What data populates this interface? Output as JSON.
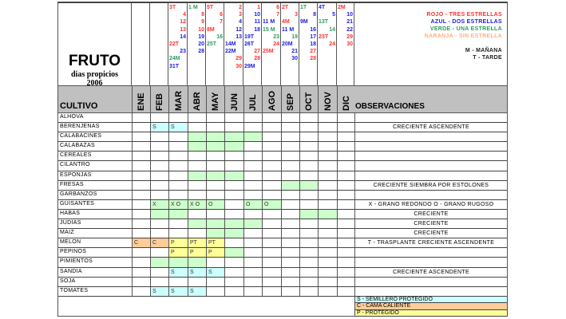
{
  "title": {
    "main": "FRUTO",
    "subtitle": "dias propicios",
    "year": "2006"
  },
  "colors": {
    "red": "#ff3030",
    "blue": "#2020e0",
    "green": "#2e9e5e",
    "orange": "#ffb080",
    "semillero": "#ccffff",
    "cama": "#ffcc99",
    "protegido": "#ffff99",
    "siembra": "#ccffcc",
    "header_gray": "#c0c0c0"
  },
  "calendar": [
    {
      "month": "ENE",
      "entries": []
    },
    {
      "month": "FEB",
      "entries": []
    },
    {
      "month": "MAR",
      "entries": [
        {
          "t": "3T",
          "c": "red",
          "a": "l"
        },
        {
          "t": "4",
          "c": "red",
          "a": "r"
        },
        {
          "t": "12",
          "c": "red",
          "a": "r"
        },
        {
          "t": "13",
          "c": "red",
          "a": "r"
        },
        {
          "t": "14",
          "c": "blue",
          "a": "r"
        },
        {
          "t": "22T",
          "c": "red",
          "a": "l"
        },
        {
          "t": "23",
          "c": "blue",
          "a": "r"
        },
        {
          "t": "24M",
          "c": "green",
          "a": "l"
        },
        {
          "t": "31T",
          "c": "blue",
          "a": "l"
        }
      ]
    },
    {
      "month": "ABR",
      "entries": [
        {
          "t": "1 M",
          "c": "green",
          "a": "l"
        },
        {
          "t": "8",
          "c": "red",
          "a": "r"
        },
        {
          "t": "9",
          "c": "red",
          "a": "r"
        },
        {
          "t": "10",
          "c": "red",
          "a": "r"
        },
        {
          "t": "19",
          "c": "blue",
          "a": "r"
        },
        {
          "t": "20",
          "c": "blue",
          "a": "r"
        },
        {
          "t": "28",
          "c": "blue",
          "a": "r"
        }
      ]
    },
    {
      "month": "MAY",
      "entries": [
        {
          "t": "5T",
          "c": "red",
          "a": "l"
        },
        {
          "t": "6",
          "c": "red",
          "a": "r"
        },
        {
          "t": "7",
          "c": "red",
          "a": "r"
        },
        {
          "t": "8M",
          "c": "red",
          "a": "l"
        },
        {
          "t": "16",
          "c": "green",
          "a": "r"
        },
        {
          "t": "25T",
          "c": "green",
          "a": "l"
        }
      ]
    },
    {
      "month": "JUN",
      "entries": [
        {
          "t": "2",
          "c": "red",
          "a": "r"
        },
        {
          "t": "3",
          "c": "red",
          "a": "r"
        },
        {
          "t": "4",
          "c": "blue",
          "a": "r"
        },
        {
          "t": "12",
          "c": "blue",
          "a": "r"
        },
        {
          "t": "13",
          "c": "blue",
          "a": "r"
        },
        {
          "t": "14M",
          "c": "blue",
          "a": "l"
        },
        {
          "t": "22M",
          "c": "blue",
          "a": "l"
        },
        {
          "t": "29",
          "c": "red",
          "a": "r"
        },
        {
          "t": "30",
          "c": "red",
          "a": "r"
        }
      ]
    },
    {
      "month": "JUL",
      "entries": [
        {
          "t": "1",
          "c": "red",
          "a": "r"
        },
        {
          "t": "10",
          "c": "blue",
          "a": "r"
        },
        {
          "t": "11",
          "c": "blue",
          "a": "r"
        },
        {
          "t": "18",
          "c": "blue",
          "a": "r"
        },
        {
          "t": "19T",
          "c": "blue",
          "a": "l"
        },
        {
          "t": "26T",
          "c": "blue",
          "a": "l"
        },
        {
          "t": "27",
          "c": "red",
          "a": "r"
        },
        {
          "t": "28",
          "c": "red",
          "a": "r"
        },
        {
          "t": "29M",
          "c": "blue",
          "a": "l"
        }
      ]
    },
    {
      "month": "AGO",
      "entries": [
        {
          "t": "6",
          "c": "red",
          "a": "r"
        },
        {
          "t": "7",
          "c": "red",
          "a": "r"
        },
        {
          "t": "11 M",
          "c": "blue",
          "a": "l"
        },
        {
          "t": "15 M",
          "c": "green",
          "a": "l"
        },
        {
          "t": "23",
          "c": "green",
          "a": "r"
        },
        {
          "t": "24",
          "c": "red",
          "a": "r"
        },
        {
          "t": "25M",
          "c": "red",
          "a": "l"
        }
      ]
    },
    {
      "month": "SEP",
      "entries": [
        {
          "t": "2T",
          "c": "red",
          "a": "l"
        },
        {
          "t": "3",
          "c": "red",
          "a": "r"
        },
        {
          "t": "4M",
          "c": "red",
          "a": "l"
        },
        {
          "t": "11 M",
          "c": "blue",
          "a": "l"
        },
        {
          "t": "19",
          "c": "green",
          "a": "r"
        },
        {
          "t": "20M",
          "c": "blue",
          "a": "l"
        },
        {
          "t": "21",
          "c": "blue",
          "a": "r"
        },
        {
          "t": "30",
          "c": "blue",
          "a": "r"
        }
      ]
    },
    {
      "month": "OCT",
      "entries": [
        {
          "t": "1T",
          "c": "green",
          "a": "l"
        },
        {
          "t": "8",
          "c": "blue",
          "a": "r"
        },
        {
          "t": "9M",
          "c": "blue",
          "a": "l"
        },
        {
          "t": "16",
          "c": "blue",
          "a": "r"
        },
        {
          "t": "17",
          "c": "blue",
          "a": "r"
        },
        {
          "t": "18",
          "c": "blue",
          "a": "r"
        },
        {
          "t": "27",
          "c": "red",
          "a": "r"
        },
        {
          "t": "28",
          "c": "red",
          "a": "r"
        }
      ]
    },
    {
      "month": "NOV",
      "entries": [
        {
          "t": "4T",
          "c": "blue",
          "a": "l"
        },
        {
          "t": "5",
          "c": "blue",
          "a": "r"
        },
        {
          "t": "13T",
          "c": "green",
          "a": "l"
        },
        {
          "t": "14",
          "c": "green",
          "a": "r"
        },
        {
          "t": "23T",
          "c": "red",
          "a": "l"
        },
        {
          "t": "24",
          "c": "red",
          "a": "r"
        }
      ]
    },
    {
      "month": "DIC",
      "entries": [
        {
          "t": "2M",
          "c": "red",
          "a": "l"
        },
        {
          "t": "10",
          "c": "blue",
          "a": "r"
        },
        {
          "t": "21",
          "c": "blue",
          "a": "r"
        },
        {
          "t": "22",
          "c": "blue",
          "a": "r"
        },
        {
          "t": "29",
          "c": "red",
          "a": "r"
        },
        {
          "t": "30",
          "c": "red",
          "a": "r"
        }
      ]
    }
  ],
  "legend": {
    "rojo": "ROJO -  TRES ESTRELLAS",
    "azul": "AZUL - DOS ESTRELLAS",
    "verde": "VERDE - UNA ESTRELLA",
    "naranja": "NARANJA - SIN ESTRELLA",
    "manana": "M - MAÑANA",
    "tarde": "T - TARDE"
  },
  "headers": {
    "cultivo": "CULTIVO",
    "observaciones": "OBSERVACIONES",
    "months": [
      "ENE",
      "FEB",
      "MAR",
      "ABR",
      "MAY",
      "JUN",
      "JUL",
      "AGO",
      "SEP",
      "OCT",
      "NOV",
      "DIC"
    ]
  },
  "crops": [
    {
      "name": "ALHOVA",
      "cells": [],
      "obs": ""
    },
    {
      "name": "BERENJENAS",
      "cells": [
        {
          "m": 1,
          "f": "semillero",
          "t": "S"
        },
        {
          "m": 2,
          "f": "semillero",
          "t": "S"
        }
      ],
      "obs": "CRECIENTE ASCENDENTE"
    },
    {
      "name": "CALABACINES",
      "cells": [
        {
          "m": 3,
          "f": "siembra"
        },
        {
          "m": 4,
          "f": "siembra"
        },
        {
          "m": 5,
          "f": "siembra"
        },
        {
          "m": 6,
          "f": "siembra"
        }
      ],
      "obs": ""
    },
    {
      "name": "CALABAZAS",
      "cells": [
        {
          "m": 3,
          "f": "siembra"
        },
        {
          "m": 4,
          "f": "siembra"
        },
        {
          "m": 5,
          "f": "siembra"
        }
      ],
      "obs": ""
    },
    {
      "name": "CEREALES",
      "cells": [],
      "obs": ""
    },
    {
      "name": "CILANTRO",
      "cells": [],
      "obs": ""
    },
    {
      "name": "ESPONJAS",
      "cells": [
        {
          "m": 3,
          "f": "siembra"
        },
        {
          "m": 4,
          "f": "siembra"
        },
        {
          "m": 5,
          "f": "siembra"
        }
      ],
      "obs": ""
    },
    {
      "name": "FRESAS",
      "cells": [
        {
          "m": 8,
          "f": "siembra"
        },
        {
          "m": 9,
          "f": "siembra"
        }
      ],
      "obs": "CRECIENTE  SIEMBRA POR ESTOLONES"
    },
    {
      "name": "GARBANZOS",
      "cells": [],
      "obs": ""
    },
    {
      "name": "GUISANTES",
      "cells": [
        {
          "m": 1,
          "f": "siembra",
          "t": "X"
        },
        {
          "m": 2,
          "f": "siembra",
          "t": "X O"
        },
        {
          "m": 3,
          "f": "siembra",
          "t": "X O"
        },
        {
          "m": 4,
          "f": "siembra",
          "t": "O"
        },
        {
          "m": 6,
          "f": "siembra",
          "t": "O"
        },
        {
          "m": 7,
          "f": "siembra",
          "t": "O"
        }
      ],
      "obs": "X - GRANO REDONDO   O - GRANO RUGOSO"
    },
    {
      "name": "HABAS",
      "cells": [
        {
          "m": 1,
          "f": "siembra"
        },
        {
          "m": 2,
          "f": "siembra"
        },
        {
          "m": 9,
          "f": "siembra"
        },
        {
          "m": 10,
          "f": "siembra"
        }
      ],
      "obs": "CRECIENTE"
    },
    {
      "name": "JUDIAS",
      "cells": [
        {
          "m": 3,
          "f": "siembra"
        },
        {
          "m": 4,
          "f": "siembra"
        },
        {
          "m": 5,
          "f": "siembra"
        },
        {
          "m": 6,
          "f": "siembra"
        }
      ],
      "obs": "CRECIENTE"
    },
    {
      "name": "MAIZ",
      "cells": [
        {
          "m": 4,
          "f": "siembra"
        },
        {
          "m": 5,
          "f": "siembra"
        }
      ],
      "obs": "CRECIENTE"
    },
    {
      "name": "MELON",
      "cells": [
        {
          "m": 0,
          "f": "cama",
          "t": "C"
        },
        {
          "m": 1,
          "f": "cama",
          "t": "C"
        },
        {
          "m": 2,
          "f": "protegido",
          "t": "P"
        },
        {
          "m": 3,
          "f": "protegido",
          "t": "PT"
        },
        {
          "m": 4,
          "f": "protegido",
          "t": "PT"
        }
      ],
      "obs": "T - TRASPLANTE        CRECIENTE ASCENDENTE"
    },
    {
      "name": "PEPINOS",
      "cells": [
        {
          "m": 2,
          "f": "protegido",
          "t": "P"
        },
        {
          "m": 3,
          "f": "protegido",
          "t": "P"
        },
        {
          "m": 4,
          "f": "protegido",
          "t": "P"
        },
        {
          "m": 5,
          "f": "siembra"
        }
      ],
      "obs": ""
    },
    {
      "name": "PIMIENTOS",
      "cells": [
        {
          "m": 1,
          "f": "siembra"
        },
        {
          "m": 2,
          "f": "siembra"
        },
        {
          "m": 3,
          "f": "siembra"
        }
      ],
      "obs": ""
    },
    {
      "name": "SANDIA",
      "cells": [
        {
          "m": 2,
          "f": "semillero",
          "t": "S"
        },
        {
          "m": 3,
          "f": "semillero",
          "t": "S"
        },
        {
          "m": 4,
          "f": "semillero",
          "t": "S"
        }
      ],
      "obs": "CRECIENTE ASCENDENTE"
    },
    {
      "name": "SOJA",
      "cells": [],
      "obs": ""
    },
    {
      "name": "TOMATES",
      "cells": [
        {
          "m": 1,
          "f": "semillero",
          "t": "S"
        },
        {
          "m": 2,
          "f": "semillero",
          "t": "S"
        },
        {
          "m": 3,
          "f": "semillero",
          "t": "S"
        }
      ],
      "obs": ""
    }
  ],
  "keys": [
    {
      "label": "S - SEMILLERO PROTEGIDO",
      "f": "semillero"
    },
    {
      "label": "C - CAMA CALIENTE",
      "f": "cama"
    },
    {
      "label": "P - PROTEGIDO",
      "f": "protegido"
    }
  ]
}
